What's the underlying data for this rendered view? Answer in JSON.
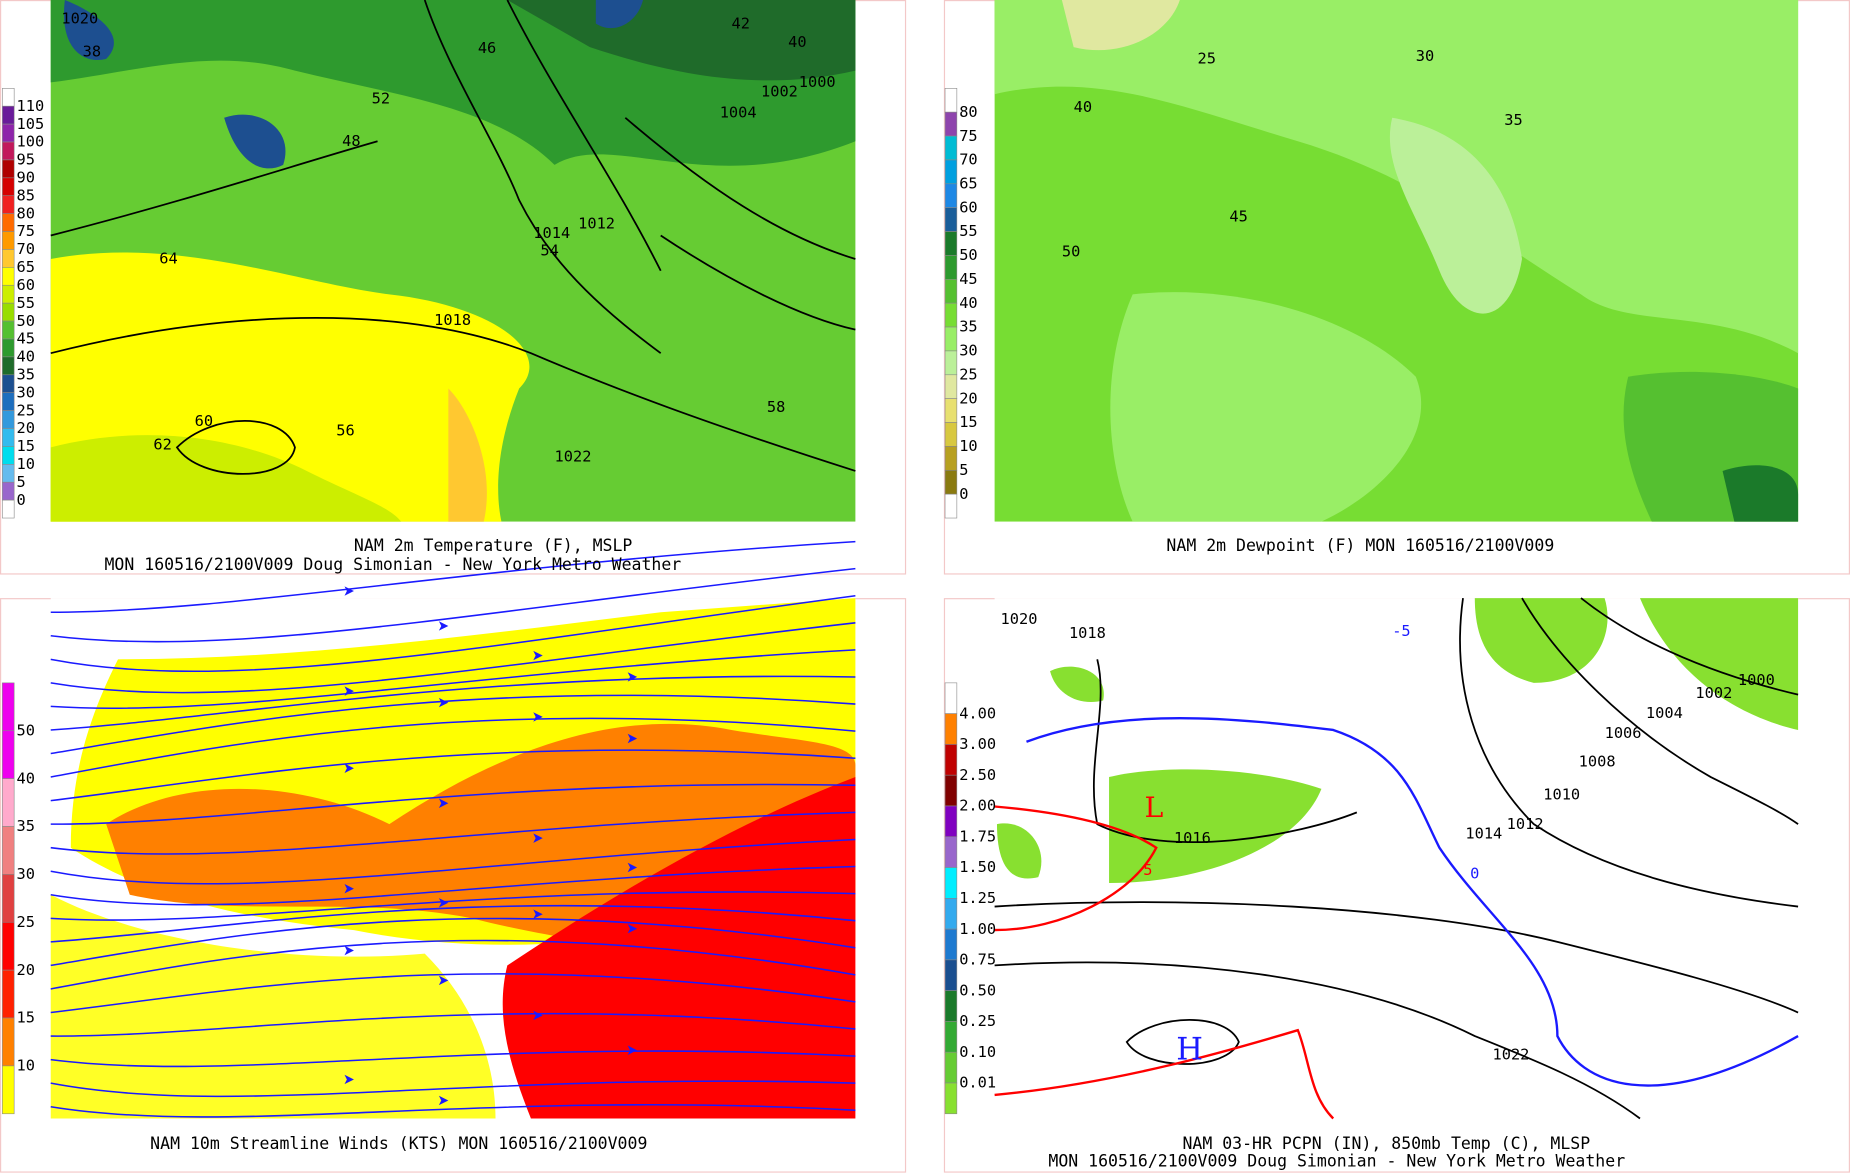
{
  "panels": [
    {
      "caption": [
        "NAM 2m Temperature (F), MSLP",
        "MON 160516/2100V009 Doug Simonian - New York Metro Weather"
      ],
      "colorbar": [
        {
          "label": "110",
          "color": "#6a1b9a"
        },
        {
          "label": "105",
          "color": "#8e24aa"
        },
        {
          "label": "100",
          "color": "#c2185b"
        },
        {
          "label": "95",
          "color": "#b00000"
        },
        {
          "label": "90",
          "color": "#d50000"
        },
        {
          "label": "85",
          "color": "#f02020"
        },
        {
          "label": "80",
          "color": "#ff6a00"
        },
        {
          "label": "75",
          "color": "#ff9a00"
        },
        {
          "label": "70",
          "color": "#ffc830"
        },
        {
          "label": "65",
          "color": "#ffff00"
        },
        {
          "label": "60",
          "color": "#ccee00"
        },
        {
          "label": "55",
          "color": "#99dd00"
        },
        {
          "label": "50",
          "color": "#55c030"
        },
        {
          "label": "45",
          "color": "#2e9a2e"
        },
        {
          "label": "40",
          "color": "#1f6b2a"
        },
        {
          "label": "35",
          "color": "#1d4f90"
        },
        {
          "label": "30",
          "color": "#1e6ebe"
        },
        {
          "label": "25",
          "color": "#3399dd"
        },
        {
          "label": "20",
          "color": "#33bbee"
        },
        {
          "label": "15",
          "color": "#00ddee"
        },
        {
          "label": "10",
          "color": "#66bbee"
        },
        {
          "label": "5",
          "color": "#9966cc"
        },
        {
          "label": "0",
          "color": "#ffffff"
        }
      ],
      "labels": [
        "1020",
        "1018",
        "1022",
        "1012",
        "1014",
        "1002",
        "1004",
        "1000",
        "64",
        "62",
        "60",
        "58",
        "56",
        "54",
        "52",
        "48",
        "46",
        "42",
        "40",
        "38"
      ]
    },
    {
      "caption": [
        "NAM 2m Dewpoint (F)  MON 160516/2100V009"
      ],
      "colorbar": [
        {
          "label": "80",
          "color": "#8e44ad"
        },
        {
          "label": "75",
          "color": "#00bcd4"
        },
        {
          "label": "70",
          "color": "#00a0e0"
        },
        {
          "label": "65",
          "color": "#1e88e5"
        },
        {
          "label": "60",
          "color": "#1a5e9a"
        },
        {
          "label": "55",
          "color": "#1b7a2a"
        },
        {
          "label": "50",
          "color": "#2e9a2e"
        },
        {
          "label": "45",
          "color": "#55c030"
        },
        {
          "label": "40",
          "color": "#77dd33"
        },
        {
          "label": "35",
          "color": "#99ee66"
        },
        {
          "label": "30",
          "color": "#bbf099"
        },
        {
          "label": "25",
          "color": "#e0e8a0"
        },
        {
          "label": "20",
          "color": "#e8e070"
        },
        {
          "label": "15",
          "color": "#d8c840"
        },
        {
          "label": "10",
          "color": "#b8a020"
        },
        {
          "label": "5",
          "color": "#8a7a10"
        },
        {
          "label": "0",
          "color": "#ffffff"
        }
      ],
      "labels": [
        "25",
        "30",
        "35",
        "40",
        "45",
        "50"
      ]
    },
    {
      "caption": [
        "NAM 10m Streamline Winds (KTS)  MON 160516/2100V009"
      ],
      "colorbar": [
        {
          "label": "50",
          "color": "#ee00ee"
        },
        {
          "label": "40",
          "color": "#ffaacc"
        },
        {
          "label": "35",
          "color": "#f08080"
        },
        {
          "label": "30",
          "color": "#e04040"
        },
        {
          "label": "25",
          "color": "#ff0000"
        },
        {
          "label": "20",
          "color": "#ff2000"
        },
        {
          "label": "15",
          "color": "#ff8000"
        },
        {
          "label": "10",
          "color": "#ffff00"
        }
      ],
      "labels": []
    },
    {
      "caption": [
        "NAM 03-HR PCPN (IN), 850mb Temp (C), MLSP",
        "MON 160516/2100V009 Doug Simonian - New York Metro Weather"
      ],
      "colorbar": [
        {
          "label": "4.00",
          "color": "#ff8000"
        },
        {
          "label": "3.00",
          "color": "#c00000"
        },
        {
          "label": "2.50",
          "color": "#800000"
        },
        {
          "label": "2.00",
          "color": "#8000c0"
        },
        {
          "label": "1.75",
          "color": "#9966cc"
        },
        {
          "label": "1.50",
          "color": "#00eeff"
        },
        {
          "label": "1.25",
          "color": "#33aaee"
        },
        {
          "label": "1.00",
          "color": "#1e7ad0"
        },
        {
          "label": "0.75",
          "color": "#1a4f90"
        },
        {
          "label": "0.50",
          "color": "#1b7a2a"
        },
        {
          "label": "0.25",
          "color": "#33aa33"
        },
        {
          "label": "0.10",
          "color": "#66cc33"
        },
        {
          "label": "0.01",
          "color": "#88e030"
        }
      ],
      "labels": [
        "1020",
        "1018",
        "1016",
        "1014",
        "1012",
        "1010",
        "1008",
        "1006",
        "1004",
        "1002",
        "1000",
        "1022",
        "-5",
        "0",
        "5",
        "L",
        "H"
      ]
    }
  ]
}
